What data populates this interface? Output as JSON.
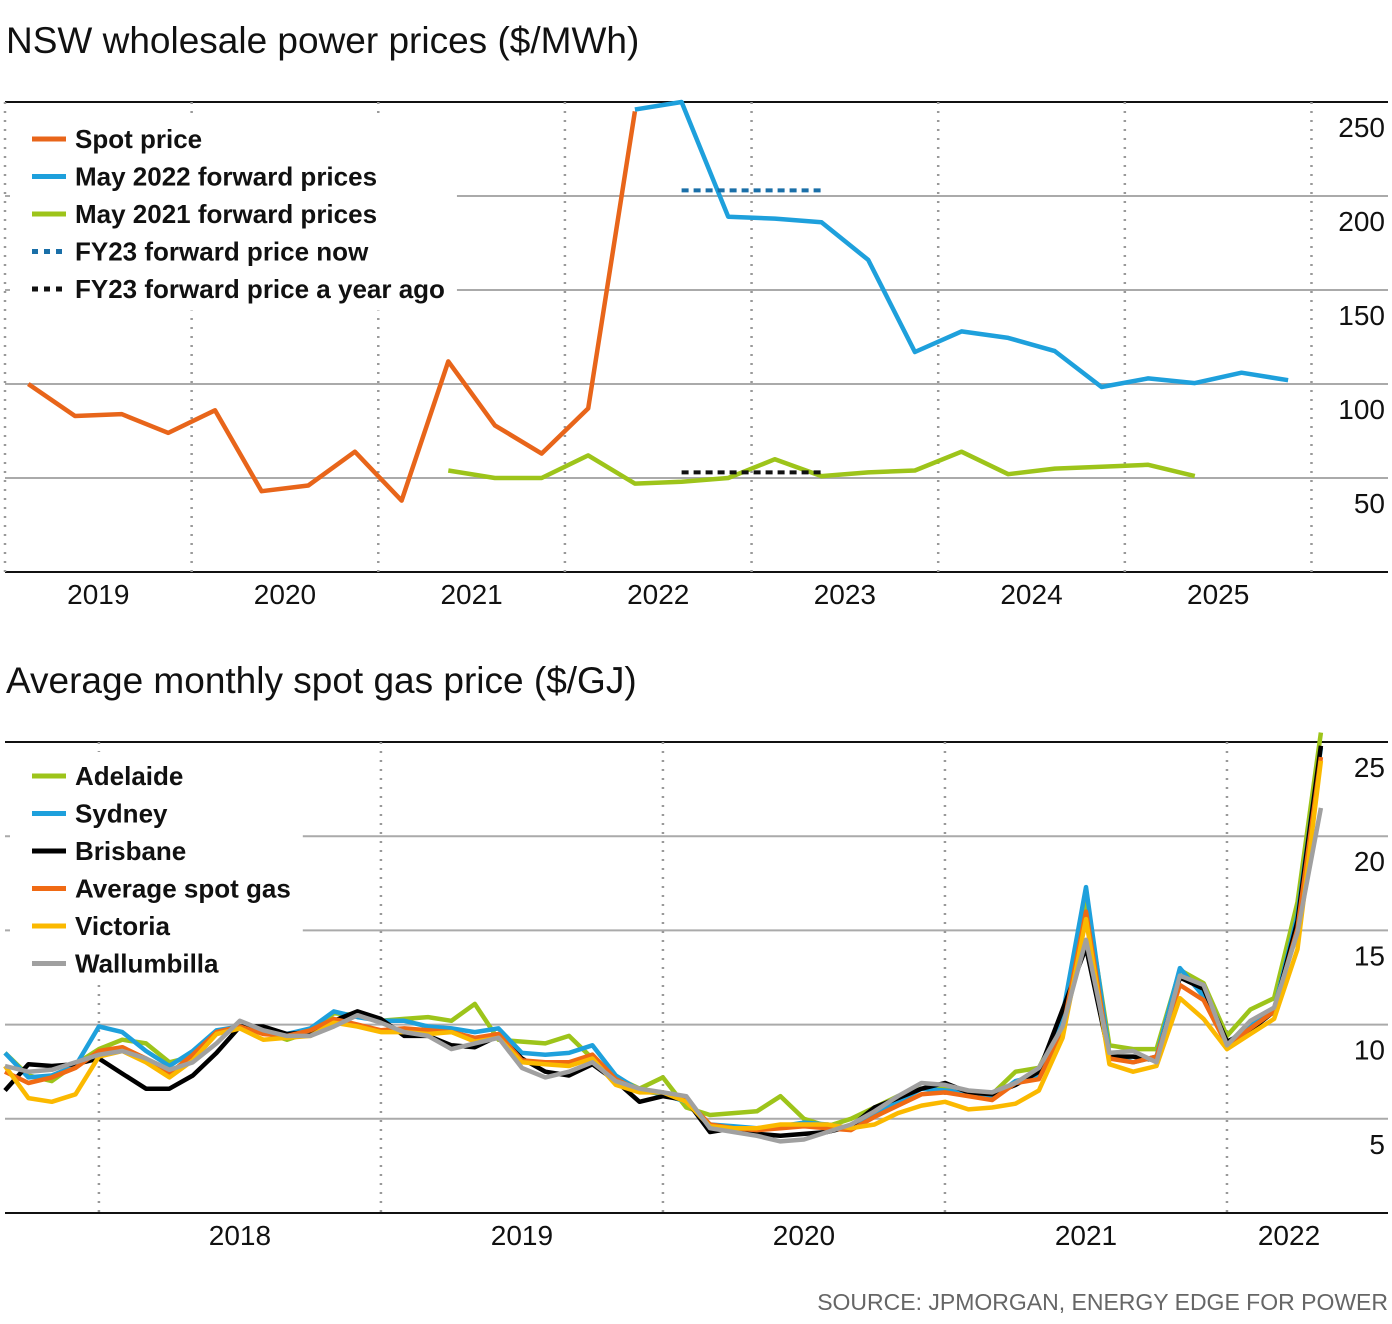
{
  "chart_data": [
    {
      "type": "line",
      "title": "NSW wholesale power prices ($/MWh)",
      "xlim": [
        2019,
        2026.41
      ],
      "ylim": [
        0,
        250
      ],
      "yticks": [
        50,
        100,
        150,
        200,
        250
      ],
      "xticks": [
        {
          "value": 2019.5,
          "label": "2019"
        },
        {
          "value": 2020.5,
          "label": "2020"
        },
        {
          "value": 2021.5,
          "label": "2021"
        },
        {
          "value": 2022.5,
          "label": "2022"
        },
        {
          "value": 2023.5,
          "label": "2023"
        },
        {
          "value": 2024.5,
          "label": "2024"
        },
        {
          "value": 2025.5,
          "label": "2025"
        }
      ],
      "grid": true,
      "legend": "upper left",
      "series": [
        {
          "name": "Spot price",
          "color": "#e8651a",
          "dashed": false,
          "x": [
            2019.125,
            2019.375,
            2019.625,
            2019.875,
            2020.125,
            2020.375,
            2020.625,
            2020.875,
            2021.125,
            2021.375,
            2021.625,
            2021.875,
            2022.125,
            2022.375
          ],
          "values": [
            100,
            83,
            84,
            74,
            86,
            43,
            46,
            64,
            38,
            112,
            78,
            63,
            87,
            245
          ]
        },
        {
          "name": "May 2022 forward prices",
          "color": "#1ea0dc",
          "dashed": false,
          "x": [
            2022.375,
            2022.625,
            2022.875,
            2023.125,
            2023.375,
            2023.625,
            2023.875,
            2024.125,
            2024.375,
            2024.625,
            2024.875,
            2025.125,
            2025.375,
            2025.625,
            2025.875
          ],
          "values": [
            246,
            250,
            189,
            188,
            186,
            166,
            117,
            128,
            124.5,
            117.5,
            98.4,
            103,
            100.5,
            106,
            102
          ]
        },
        {
          "name": "May 2021 forward prices",
          "color": "#9dc41a",
          "dashed": false,
          "x": [
            2021.375,
            2021.625,
            2021.875,
            2022.125,
            2022.375,
            2022.625,
            2022.875,
            2023.125,
            2023.375,
            2023.625,
            2023.875,
            2024.125,
            2024.375,
            2024.625,
            2024.875,
            2025.125,
            2025.375
          ],
          "values": [
            54,
            50,
            50,
            62,
            47,
            48,
            50,
            60,
            51,
            53,
            54,
            64,
            52,
            55,
            56,
            57,
            51
          ]
        },
        {
          "name": "FY23 forward price now",
          "color": "#1a6fa8",
          "dashed": true,
          "x": [
            2022.625,
            2023.375
          ],
          "values": [
            203,
            203
          ]
        },
        {
          "name": "FY23 forward price a year ago",
          "color": "#111111",
          "dashed": true,
          "x": [
            2022.625,
            2023.375
          ],
          "values": [
            53,
            53
          ]
        }
      ]
    },
    {
      "type": "line",
      "title": "Average monthly spot gas price ($/GJ)",
      "xlim": [
        2017.667,
        2022.571
      ],
      "ylim": [
        0,
        25
      ],
      "yticks": [
        5,
        10,
        15,
        20,
        25
      ],
      "xticks": [
        {
          "value": 2018.5,
          "label": "2018"
        },
        {
          "value": 2019.5,
          "label": "2019"
        },
        {
          "value": 2020.5,
          "label": "2020"
        },
        {
          "value": 2021.5,
          "label": "2021"
        },
        {
          "value": 2022.22,
          "label": "2022"
        }
      ],
      "grid": true,
      "legend": "upper left",
      "x": [
        2017.667,
        2017.75,
        2017.833,
        2017.917,
        2018,
        2018.083,
        2018.167,
        2018.25,
        2018.333,
        2018.417,
        2018.5,
        2018.583,
        2018.667,
        2018.75,
        2018.833,
        2018.917,
        2019,
        2019.083,
        2019.167,
        2019.25,
        2019.333,
        2019.417,
        2019.5,
        2019.583,
        2019.667,
        2019.75,
        2019.833,
        2019.917,
        2020,
        2020.083,
        2020.167,
        2020.25,
        2020.333,
        2020.417,
        2020.5,
        2020.583,
        2020.667,
        2020.75,
        2020.833,
        2020.917,
        2021,
        2021.083,
        2021.167,
        2021.25,
        2021.333,
        2021.417,
        2021.5,
        2021.583,
        2021.667,
        2021.75,
        2021.833,
        2021.917,
        2022,
        2022.083,
        2022.167,
        2022.25,
        2022.333
      ],
      "series": [
        {
          "name": "Adelaide",
          "color": "#9dc41a",
          "values": [
            8.5,
            7.3,
            7.0,
            7.9,
            8.7,
            9.2,
            9.0,
            8.0,
            8.3,
            9.5,
            9.9,
            9.6,
            9.2,
            9.6,
            10.6,
            10.5,
            10.2,
            10.3,
            10.4,
            10.2,
            11.1,
            9.2,
            9.1,
            9.0,
            9.4,
            8.2,
            7.2,
            6.6,
            7.2,
            5.6,
            5.2,
            5.3,
            5.4,
            6.2,
            5.0,
            4.6,
            5.0,
            5.6,
            6.2,
            6.6,
            6.6,
            6.4,
            6.3,
            7.5,
            7.7,
            10.2,
            16.8,
            8.9,
            8.7,
            8.7,
            12.9,
            12.2,
            9.4,
            10.8,
            11.4,
            16.5,
            25.5
          ]
        },
        {
          "name": "Sydney",
          "color": "#1ea0dc",
          "values": [
            8.5,
            7.2,
            7.3,
            7.8,
            9.9,
            9.6,
            8.6,
            7.8,
            8.6,
            9.7,
            9.9,
            9.6,
            9.5,
            9.8,
            10.7,
            10.4,
            10.2,
            10.2,
            9.9,
            9.8,
            9.6,
            9.8,
            8.5,
            8.4,
            8.5,
            8.9,
            7.3,
            6.5,
            6.3,
            5.9,
            4.7,
            4.6,
            4.5,
            4.6,
            4.8,
            4.7,
            4.5,
            5.2,
            5.9,
            6.6,
            6.5,
            6.4,
            6.1,
            7.0,
            7.3,
            10.5,
            17.3,
            8.4,
            8.0,
            8.3,
            13.0,
            11.5,
            9.0,
            10.0,
            10.8,
            15.8,
            24.7
          ]
        },
        {
          "name": "Brisbane",
          "color": "#000000",
          "values": [
            6.5,
            7.9,
            7.8,
            7.9,
            8.2,
            7.4,
            6.6,
            6.6,
            7.3,
            8.5,
            9.9,
            9.9,
            9.5,
            9.6,
            10.2,
            10.7,
            10.3,
            9.4,
            9.4,
            8.9,
            8.8,
            9.4,
            8.2,
            7.5,
            7.3,
            7.9,
            7.0,
            5.9,
            6.2,
            6.0,
            4.3,
            4.5,
            4.2,
            4.1,
            4.2,
            4.3,
            4.6,
            5.6,
            6.1,
            6.6,
            6.9,
            6.4,
            6.3,
            6.8,
            7.5,
            10.8,
            14.1,
            8.3,
            8.3,
            8.1,
            12.5,
            11.9,
            9.1,
            9.7,
            10.7,
            15.5,
            24.8
          ]
        },
        {
          "name": "Average spot gas",
          "color": "#f06a14",
          "values": [
            7.5,
            6.9,
            7.2,
            7.7,
            8.6,
            8.8,
            8.2,
            7.4,
            8.4,
            9.6,
            9.9,
            9.5,
            9.4,
            9.7,
            10.3,
            10.0,
            9.7,
            9.8,
            9.7,
            9.6,
            9.3,
            9.5,
            8.1,
            8.0,
            8.0,
            8.4,
            7.1,
            6.5,
            6.4,
            6.0,
            4.7,
            4.5,
            4.4,
            4.5,
            4.6,
            4.5,
            4.4,
            5.1,
            5.7,
            6.3,
            6.4,
            6.2,
            6.0,
            6.9,
            7.1,
            9.7,
            16.0,
            8.2,
            8.0,
            8.3,
            12.1,
            11.3,
            8.9,
            9.8,
            10.7,
            15.1,
            24.2
          ]
        },
        {
          "name": "Victoria",
          "color": "#fbb900",
          "values": [
            7.8,
            6.1,
            5.9,
            6.3,
            8.3,
            8.6,
            8.0,
            7.2,
            8.1,
            9.5,
            9.8,
            9.2,
            9.3,
            9.4,
            10.1,
            9.9,
            9.6,
            9.6,
            9.5,
            9.6,
            9.1,
            9.3,
            8.0,
            7.9,
            7.8,
            8.2,
            6.8,
            6.4,
            6.4,
            5.9,
            4.6,
            4.5,
            4.5,
            4.7,
            4.7,
            4.7,
            4.5,
            4.7,
            5.3,
            5.7,
            5.9,
            5.5,
            5.6,
            5.8,
            6.5,
            9.3,
            15.6,
            7.9,
            7.5,
            7.8,
            11.4,
            10.3,
            8.7,
            9.5,
            10.3,
            14.0,
            24.0
          ]
        },
        {
          "name": "Wallumbilla",
          "color": "#a0a0a0",
          "values": [
            7.8,
            7.5,
            7.6,
            8.0,
            8.4,
            8.6,
            8.2,
            7.6,
            8.0,
            9.0,
            10.2,
            9.7,
            9.4,
            9.4,
            9.9,
            10.5,
            10.1,
            9.6,
            9.4,
            8.7,
            9.0,
            9.3,
            7.7,
            7.2,
            7.5,
            8.0,
            7.0,
            6.6,
            6.4,
            6.2,
            4.5,
            4.3,
            4.1,
            3.8,
            3.9,
            4.3,
            4.7,
            5.4,
            6.2,
            6.9,
            6.8,
            6.5,
            6.4,
            6.9,
            7.7,
            9.9,
            14.5,
            8.5,
            8.6,
            8.0,
            12.6,
            12.1,
            8.9,
            10.2,
            10.9,
            14.9,
            21.5
          ]
        }
      ]
    }
  ],
  "source": "SOURCE: JPMORGAN, ENERGY EDGE FOR POWER"
}
